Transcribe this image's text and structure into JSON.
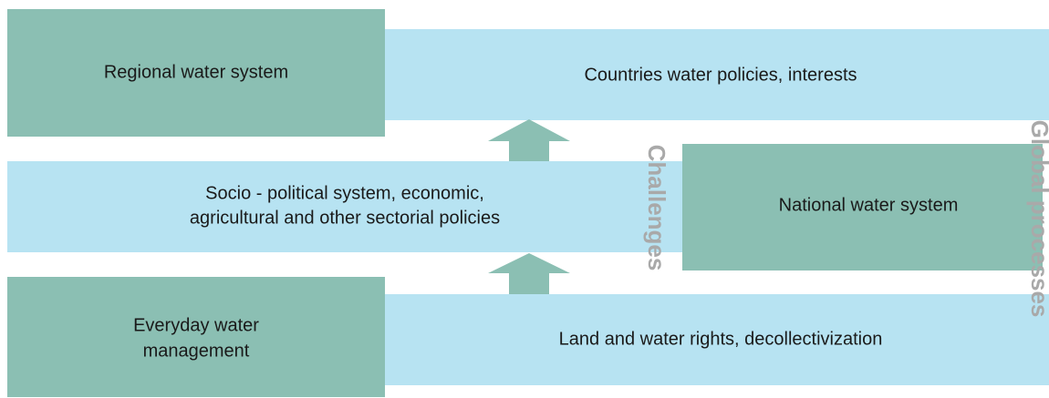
{
  "boxes": {
    "regional": {
      "lines": [
        "Regional water system"
      ]
    },
    "countries": {
      "lines": [
        "Countries water policies, interests"
      ]
    },
    "socio": {
      "lines": [
        "Socio - political system, economic,",
        "agricultural and other sectorial policies"
      ]
    },
    "national": {
      "lines": [
        "National water system"
      ]
    },
    "everyday": {
      "lines": [
        "Everyday water",
        "management"
      ]
    },
    "land": {
      "lines": [
        "Land and water rights, decollectivization"
      ]
    }
  },
  "side_labels": {
    "challenges": "Challenges",
    "global": "Global processes"
  }
}
